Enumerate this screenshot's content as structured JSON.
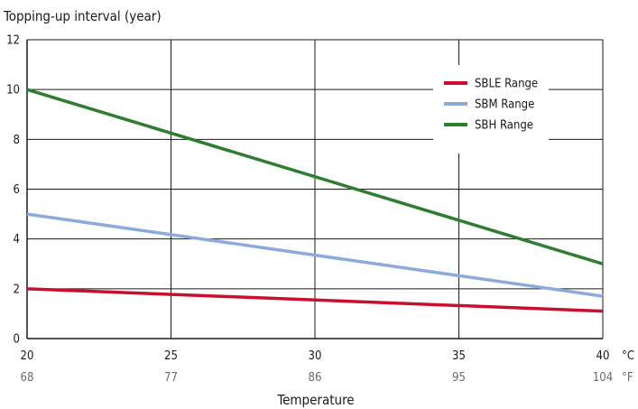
{
  "chart_data": {
    "type": "line",
    "title": "Topping-up interval (year)",
    "xlabel": "Temperature",
    "x_unit_primary": "°C",
    "x_unit_secondary": "°F",
    "x_ticks": [
      20,
      25,
      30,
      35,
      40
    ],
    "x_ticks_secondary": [
      "68",
      "77",
      "86",
      "95",
      "104"
    ],
    "xlim": [
      20,
      40
    ],
    "ylim": [
      0,
      12
    ],
    "y_ticks": [
      0,
      2,
      4,
      6,
      8,
      10,
      12
    ],
    "grid": true,
    "legend_position": "top-right",
    "series": [
      {
        "name": "SBLE Range",
        "color": "#c8102e",
        "x": [
          20,
          40
        ],
        "values": [
          2,
          1.1
        ]
      },
      {
        "name": "SBM Range",
        "color": "#8eaadb",
        "x": [
          20,
          40
        ],
        "values": [
          5,
          1.7
        ]
      },
      {
        "name": "SBH Range",
        "color": "#2e7d32",
        "x": [
          20,
          40
        ],
        "values": [
          10,
          3
        ]
      }
    ]
  }
}
